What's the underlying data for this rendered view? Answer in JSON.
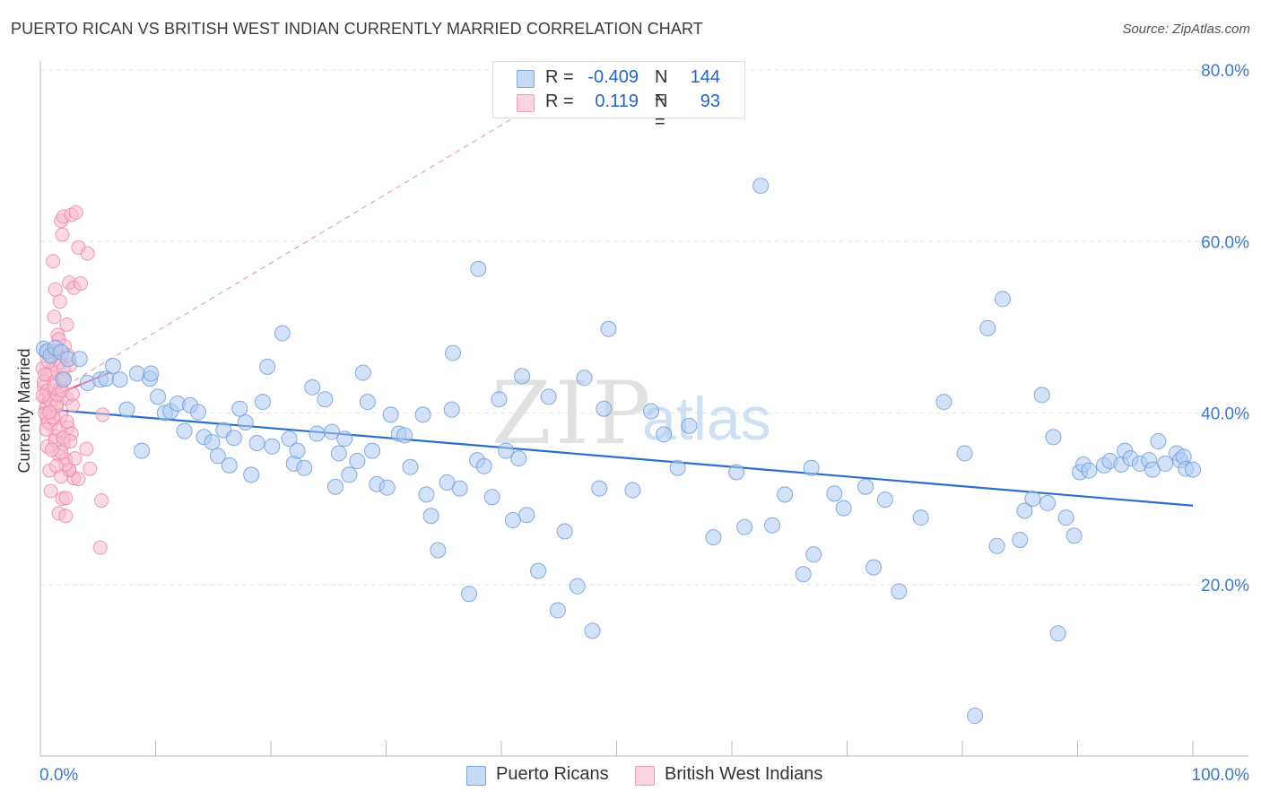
{
  "title": "PUERTO RICAN VS BRITISH WEST INDIAN CURRENTLY MARRIED CORRELATION CHART",
  "source": "Source: ZipAtlas.com",
  "watermark": {
    "zip": "ZIP",
    "atlas": "atlas"
  },
  "legend": {
    "r_label": "R =",
    "n_label": "N =",
    "rows": [
      {
        "name": "Puerto Ricans",
        "r": "-0.409",
        "n": "144"
      },
      {
        "name": "British West Indians",
        "r": "0.119",
        "n": "93"
      }
    ]
  },
  "colors": {
    "blue_fill": "#aecbf2",
    "blue_stroke": "#6f9fd8",
    "blue_line": "#2b6fcc",
    "pink_fill": "#f7bcd0",
    "pink_stroke": "#ea8aaa",
    "pink_line": "#e0598a",
    "axis_text": "#3b78d0",
    "grid": "#e6e6e6"
  },
  "chart_data": {
    "type": "scatter",
    "title": "PUERTO RICAN VS BRITISH WEST INDIAN CURRENTLY MARRIED CORRELATION CHART",
    "ylabel": "Currently Married",
    "xlabel": "",
    "xlim": [
      0,
      100
    ],
    "ylim": [
      0,
      80
    ],
    "x_tick_labels": [
      "0.0%",
      "100.0%"
    ],
    "y_tick_labels": [
      "20.0%",
      "40.0%",
      "60.0%",
      "80.0%"
    ],
    "y_ticks": [
      20,
      40,
      60,
      80
    ],
    "grid": true,
    "legend_position": "top-center",
    "series": [
      {
        "name": "Puerto Ricans",
        "color": "#aecbf2",
        "trend": {
          "x": [
            0,
            100
          ],
          "y": [
            40.5,
            29.2
          ],
          "style": "solid"
        },
        "points": [
          [
            0.3,
            47.5
          ],
          [
            0.6,
            47.2
          ],
          [
            0.9,
            46.7
          ],
          [
            1.3,
            47.6
          ],
          [
            1.8,
            47.1
          ],
          [
            2.0,
            43.9
          ],
          [
            2.4,
            46.3
          ],
          [
            3.4,
            46.3
          ],
          [
            4.1,
            43.5
          ],
          [
            5.2,
            43.9
          ],
          [
            5.7,
            44.0
          ],
          [
            6.3,
            45.5
          ],
          [
            6.9,
            43.9
          ],
          [
            7.5,
            40.4
          ],
          [
            8.4,
            44.6
          ],
          [
            8.8,
            35.6
          ],
          [
            9.5,
            44.0
          ],
          [
            9.6,
            44.6
          ],
          [
            10.2,
            41.9
          ],
          [
            10.8,
            40.0
          ],
          [
            11.3,
            40.2
          ],
          [
            11.9,
            41.1
          ],
          [
            12.5,
            37.9
          ],
          [
            13.0,
            40.9
          ],
          [
            13.7,
            40.1
          ],
          [
            14.2,
            37.2
          ],
          [
            14.9,
            36.6
          ],
          [
            15.4,
            35.0
          ],
          [
            15.9,
            38.0
          ],
          [
            16.4,
            33.9
          ],
          [
            16.8,
            37.1
          ],
          [
            17.3,
            40.5
          ],
          [
            17.8,
            38.9
          ],
          [
            18.3,
            32.8
          ],
          [
            18.8,
            36.5
          ],
          [
            19.3,
            41.3
          ],
          [
            19.7,
            45.4
          ],
          [
            20.1,
            36.1
          ],
          [
            21.0,
            49.3
          ],
          [
            21.6,
            37.0
          ],
          [
            22.0,
            34.1
          ],
          [
            22.3,
            35.6
          ],
          [
            22.9,
            33.6
          ],
          [
            23.6,
            43.0
          ],
          [
            24.0,
            37.6
          ],
          [
            24.7,
            41.6
          ],
          [
            25.3,
            37.8
          ],
          [
            25.6,
            31.4
          ],
          [
            25.9,
            35.3
          ],
          [
            26.4,
            37.0
          ],
          [
            26.8,
            32.8
          ],
          [
            27.5,
            34.4
          ],
          [
            28.0,
            44.7
          ],
          [
            28.4,
            41.3
          ],
          [
            28.8,
            35.6
          ],
          [
            29.2,
            31.7
          ],
          [
            30.1,
            31.3
          ],
          [
            30.4,
            39.8
          ],
          [
            31.1,
            37.6
          ],
          [
            31.6,
            37.4
          ],
          [
            32.1,
            33.7
          ],
          [
            33.2,
            39.8
          ],
          [
            33.5,
            30.5
          ],
          [
            33.9,
            28.0
          ],
          [
            34.5,
            24.0
          ],
          [
            35.3,
            31.9
          ],
          [
            35.8,
            47.0
          ],
          [
            35.7,
            40.4
          ],
          [
            36.4,
            31.2
          ],
          [
            37.2,
            18.9
          ],
          [
            37.9,
            34.5
          ],
          [
            38.5,
            33.8
          ],
          [
            39.2,
            30.2
          ],
          [
            38.0,
            56.8
          ],
          [
            39.8,
            41.6
          ],
          [
            40.4,
            35.6
          ],
          [
            41.0,
            27.5
          ],
          [
            41.5,
            34.7
          ],
          [
            41.8,
            44.3
          ],
          [
            42.2,
            28.1
          ],
          [
            43.2,
            21.6
          ],
          [
            44.1,
            41.9
          ],
          [
            44.9,
            17.0
          ],
          [
            45.5,
            26.2
          ],
          [
            46.6,
            19.8
          ],
          [
            47.2,
            44.1
          ],
          [
            47.9,
            14.6
          ],
          [
            48.5,
            31.2
          ],
          [
            48.9,
            40.5
          ],
          [
            49.3,
            49.8
          ],
          [
            51.4,
            31.0
          ],
          [
            55.3,
            33.6
          ],
          [
            56.3,
            38.5
          ],
          [
            58.4,
            25.5
          ],
          [
            60.4,
            33.1
          ],
          [
            61.1,
            26.7
          ],
          [
            62.5,
            66.5
          ],
          [
            63.5,
            26.9
          ],
          [
            64.6,
            30.5
          ],
          [
            66.2,
            21.2
          ],
          [
            66.9,
            33.6
          ],
          [
            67.1,
            23.5
          ],
          [
            68.9,
            30.6
          ],
          [
            69.7,
            28.9
          ],
          [
            71.6,
            31.4
          ],
          [
            72.3,
            22.0
          ],
          [
            73.3,
            29.9
          ],
          [
            74.5,
            19.2
          ],
          [
            76.4,
            27.8
          ],
          [
            78.4,
            41.3
          ],
          [
            80.2,
            35.3
          ],
          [
            81.1,
            4.7
          ],
          [
            82.2,
            49.9
          ],
          [
            83.0,
            24.5
          ],
          [
            83.5,
            53.3
          ],
          [
            85.0,
            25.2
          ],
          [
            86.1,
            30.0
          ],
          [
            86.9,
            42.1
          ],
          [
            87.4,
            29.5
          ],
          [
            85.4,
            28.6
          ],
          [
            87.9,
            37.2
          ],
          [
            88.3,
            14.3
          ],
          [
            89.0,
            27.8
          ],
          [
            89.7,
            25.7
          ],
          [
            90.2,
            33.1
          ],
          [
            90.5,
            34.0
          ],
          [
            91.0,
            33.3
          ],
          [
            92.3,
            33.9
          ],
          [
            92.8,
            34.4
          ],
          [
            93.8,
            34.0
          ],
          [
            94.1,
            35.6
          ],
          [
            94.6,
            34.7
          ],
          [
            95.4,
            34.1
          ],
          [
            96.2,
            34.5
          ],
          [
            96.5,
            33.4
          ],
          [
            97.0,
            36.7
          ],
          [
            97.6,
            34.1
          ],
          [
            98.6,
            35.3
          ],
          [
            98.9,
            34.5
          ],
          [
            99.2,
            34.9
          ],
          [
            99.4,
            33.5
          ],
          [
            100.0,
            33.4
          ],
          [
            53.0,
            40.2
          ],
          [
            54.1,
            37.5
          ]
        ]
      },
      {
        "name": "British West Indians",
        "color": "#f7bcd0",
        "trend": {
          "x": [
            0,
            6
          ],
          "y": [
            41.4,
            44.7
          ],
          "style": "solid",
          "extended_dashed": {
            "x": [
              0,
              48
            ],
            "y": [
              41.4,
              80
            ]
          }
        },
        "points": [
          [
            0.2,
            45.2
          ],
          [
            0.3,
            43.1
          ],
          [
            0.4,
            41.8
          ],
          [
            0.5,
            40.6
          ],
          [
            0.6,
            39.5
          ],
          [
            0.7,
            44.5
          ],
          [
            0.8,
            42.3
          ],
          [
            0.9,
            38.7
          ],
          [
            1.0,
            46.6
          ],
          [
            1.1,
            40.2
          ],
          [
            1.2,
            43.6
          ],
          [
            1.3,
            37.3
          ],
          [
            1.4,
            45.5
          ],
          [
            1.5,
            41.2
          ],
          [
            1.6,
            35.1
          ],
          [
            1.7,
            42.8
          ],
          [
            1.8,
            39.7
          ],
          [
            1.9,
            44.1
          ],
          [
            2.0,
            36.4
          ],
          [
            2.1,
            47.8
          ],
          [
            2.2,
            34.6
          ],
          [
            2.3,
            41.7
          ],
          [
            2.4,
            38.3
          ],
          [
            2.5,
            33.3
          ],
          [
            2.6,
            45.6
          ],
          [
            2.7,
            37.6
          ],
          [
            2.8,
            40.9
          ],
          [
            2.9,
            32.4
          ],
          [
            0.3,
            43.6
          ],
          [
            0.5,
            47.1
          ],
          [
            0.6,
            36.1
          ],
          [
            0.8,
            33.3
          ],
          [
            0.9,
            30.9
          ],
          [
            1.1,
            57.7
          ],
          [
            1.2,
            51.2
          ],
          [
            1.3,
            54.4
          ],
          [
            1.5,
            49.1
          ],
          [
            1.7,
            53.0
          ],
          [
            1.8,
            62.4
          ],
          [
            1.9,
            60.8
          ],
          [
            2.0,
            62.9
          ],
          [
            2.3,
            50.3
          ],
          [
            2.5,
            55.2
          ],
          [
            2.7,
            63.1
          ],
          [
            2.9,
            54.6
          ],
          [
            3.1,
            63.4
          ],
          [
            3.3,
            59.3
          ],
          [
            3.5,
            55.1
          ],
          [
            4.1,
            58.6
          ],
          [
            1.6,
            28.3
          ],
          [
            1.9,
            30.0
          ],
          [
            2.2,
            30.1
          ],
          [
            2.5,
            33.4
          ],
          [
            3.3,
            32.3
          ],
          [
            4.0,
            35.8
          ],
          [
            4.3,
            33.5
          ],
          [
            5.3,
            29.8
          ],
          [
            5.2,
            24.3
          ],
          [
            5.4,
            39.8
          ],
          [
            0.4,
            40.0
          ],
          [
            0.6,
            42.6
          ],
          [
            0.7,
            38.9
          ],
          [
            0.9,
            41.4
          ],
          [
            1.0,
            44.9
          ],
          [
            1.1,
            39.5
          ],
          [
            1.2,
            43.1
          ],
          [
            1.3,
            36.8
          ],
          [
            1.4,
            40.8
          ],
          [
            1.5,
            42.1
          ],
          [
            1.6,
            38.0
          ],
          [
            1.7,
            45.9
          ],
          [
            1.8,
            35.4
          ],
          [
            1.9,
            42.6
          ],
          [
            2.0,
            37.1
          ],
          [
            2.1,
            44.0
          ],
          [
            2.2,
            34.0
          ],
          [
            2.3,
            39.0
          ],
          [
            2.4,
            46.7
          ],
          [
            2.6,
            36.7
          ],
          [
            2.8,
            42.2
          ],
          [
            3.0,
            34.7
          ],
          [
            0.2,
            42.0
          ],
          [
            0.4,
            44.5
          ],
          [
            0.5,
            38.1
          ],
          [
            0.7,
            46.0
          ],
          [
            0.8,
            40.1
          ],
          [
            1.0,
            35.7
          ],
          [
            1.2,
            47.2
          ],
          [
            1.4,
            33.8
          ],
          [
            1.6,
            48.6
          ],
          [
            1.8,
            32.6
          ],
          [
            2.0,
            45.2
          ],
          [
            2.2,
            28.0
          ]
        ]
      }
    ]
  }
}
